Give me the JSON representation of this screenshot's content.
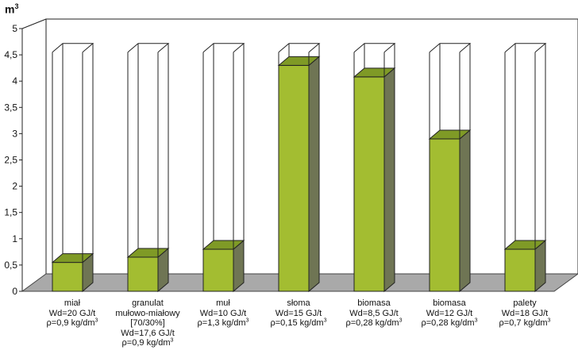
{
  "chart_data": {
    "type": "bar",
    "ylabel": "m",
    "ylabel_superscript": "3",
    "ylim": [
      0,
      5
    ],
    "yticks": [
      "0",
      "0,5",
      "1",
      "1,5",
      "2",
      "2,5",
      "3",
      "3,5",
      "4",
      "4,5",
      "5"
    ],
    "capacity": 4.55,
    "categories": [
      {
        "lines": [
          {
            "text": "miał"
          },
          {
            "text": "Wd=20 GJ/t"
          },
          {
            "text": "ρ=0,9 kg/dm",
            "sup": "3"
          }
        ]
      },
      {
        "lines": [
          {
            "text": "granulat"
          },
          {
            "text": "mułowo-miałowy"
          },
          {
            "text": "[70/30%]"
          },
          {
            "text": "Wd=17,6 GJ/t"
          },
          {
            "text": "ρ=0,9 kg/dm",
            "sup": "3"
          }
        ]
      },
      {
        "lines": [
          {
            "text": "muł"
          },
          {
            "text": "Wd=10 GJ/t"
          },
          {
            "text": "ρ=1,3 kg/dm",
            "sup": "3"
          }
        ]
      },
      {
        "lines": [
          {
            "text": "słoma"
          },
          {
            "text": "Wd=15 GJ/t"
          },
          {
            "text": "ρ=0,15 kg/dm",
            "sup": "3"
          }
        ]
      },
      {
        "lines": [
          {
            "text": "biomasa"
          },
          {
            "text": "Wd=8,5 GJ/t"
          },
          {
            "text": "ρ=0,28 kg/dm",
            "sup": "3"
          }
        ]
      },
      {
        "lines": [
          {
            "text": "biomasa"
          },
          {
            "text": "Wd=12 GJ/t"
          },
          {
            "text": "ρ=0,28 kg/dm",
            "sup": "3"
          }
        ]
      },
      {
        "lines": [
          {
            "text": "palety"
          },
          {
            "text": "Wd=18 GJ/t"
          },
          {
            "text": "ρ=0,7 kg/dm",
            "sup": "3"
          }
        ]
      }
    ],
    "values": [
      0.55,
      0.65,
      0.8,
      4.3,
      4.08,
      2.9,
      0.8
    ],
    "colors": {
      "bar_front": "#a3bd31",
      "bar_top": "#7f9a26",
      "bar_side": "#6f7554",
      "floor": "#a9a9a9",
      "outline": "#222222"
    },
    "grid": false,
    "legend": "none"
  }
}
